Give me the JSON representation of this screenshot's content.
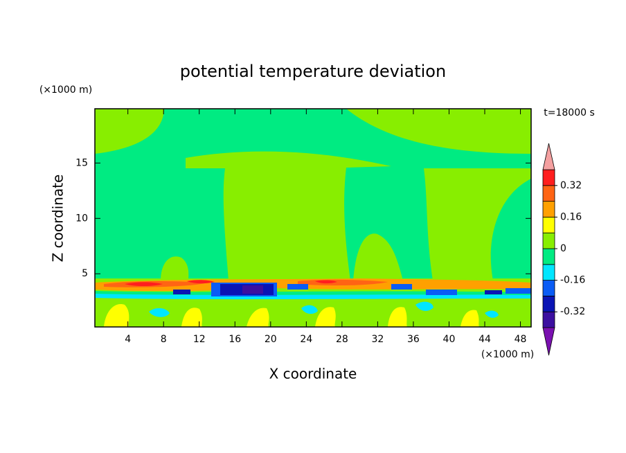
{
  "chart_data": {
    "type": "contour",
    "title": "potential temperature deviation",
    "x_label": "X coordinate",
    "y_label": "Z coordinate",
    "x_unit": "(×1000 m)",
    "y_unit": "(×1000 m)",
    "annotation": "t=18000 s",
    "xlim": [
      0.3,
      49.2
    ],
    "ylim": [
      0.2,
      19.9
    ],
    "xticks": [
      4,
      8,
      12,
      16,
      20,
      24,
      28,
      32,
      36,
      40,
      44,
      48
    ],
    "yticks": [
      5,
      10,
      15
    ],
    "colorbar": {
      "levels": [
        -0.4,
        -0.32,
        -0.24,
        -0.16,
        -0.08,
        0,
        0.08,
        0.16,
        0.24,
        0.32,
        0.4
      ],
      "ticks": [
        -0.32,
        -0.16,
        0,
        0.16,
        0.32
      ],
      "colors": [
        "#7a10b0",
        "#3c0fa0",
        "#0a14b4",
        "#0a5cf5",
        "#00e6ff",
        "#00eb82",
        "#88ee00",
        "#ffff00",
        "#ffa000",
        "#ff6414",
        "#ff1e1e",
        "#f4a0a0"
      ],
      "extend": "both"
    }
  }
}
